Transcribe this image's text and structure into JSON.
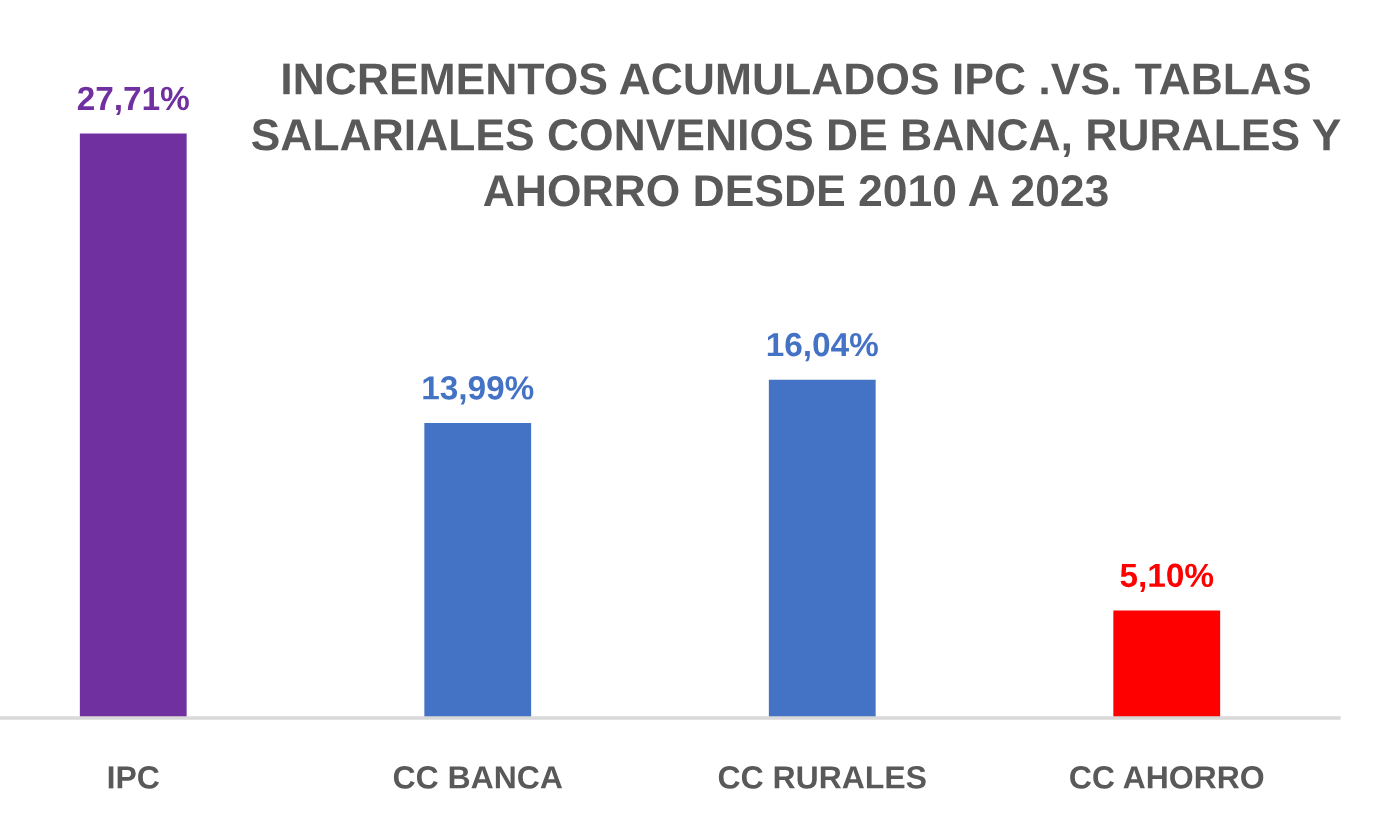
{
  "chart_data": {
    "type": "bar",
    "title": "INCREMENTOS ACUMULADOS IPC .VS. TABLAS\nSALARIALES CONVENIOS DE BANCA, RURALES Y\nAHORRO DESDE 2010 A 2023",
    "categories": [
      "IPC",
      "CC BANCA",
      "CC RURALES",
      "CC AHORRO"
    ],
    "values": [
      27.71,
      13.99,
      16.04,
      5.1
    ],
    "colors": [
      "#7030a0",
      "#4472c4",
      "#4472c4",
      "#ff0000"
    ],
    "value_labels": [
      "27,71%",
      "13,99%",
      "16,04%",
      "5,10%"
    ],
    "tick_labels": "x"
  }
}
